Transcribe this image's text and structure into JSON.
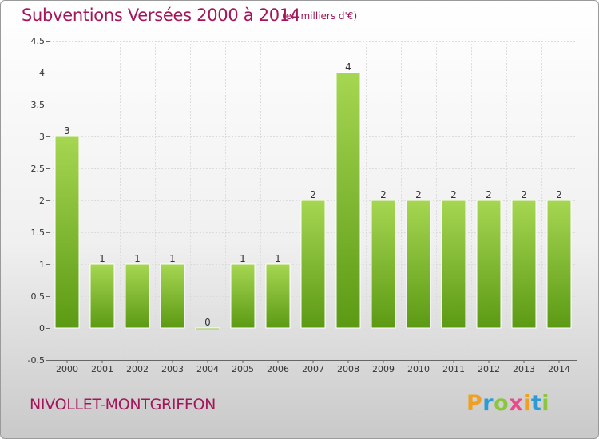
{
  "header": {
    "title": "Subventions Versées 2000 à 2014",
    "subtitle": "(en milliers d'€)"
  },
  "footer": {
    "commune": "NIVOLLET-MONTGRIFFON",
    "logo_letters": [
      "P",
      "r",
      "o",
      "x",
      "i",
      "t",
      "i"
    ],
    "logo_colors": [
      "#f0a020",
      "#2a9bd6",
      "#8cc63f",
      "#e84a8c",
      "#f0a020",
      "#2a9bd6",
      "#8cc63f"
    ]
  },
  "chart_data": {
    "type": "bar",
    "title": "Subventions Versées 2000 à 2014",
    "subtitle": "(en milliers d'€)",
    "categories": [
      "2000",
      "2001",
      "2002",
      "2003",
      "2004",
      "2005",
      "2006",
      "2007",
      "2008",
      "2009",
      "2010",
      "2011",
      "2012",
      "2013",
      "2014"
    ],
    "values": [
      3,
      1,
      1,
      1,
      0,
      1,
      1,
      2,
      4,
      2,
      2,
      2,
      2,
      2,
      2
    ],
    "value_labels": [
      "3",
      "1",
      "1",
      "1",
      "0",
      "1",
      "1",
      "2",
      "4",
      "2",
      "2",
      "2",
      "2",
      "2",
      "2"
    ],
    "ylim": [
      -0.5,
      4.5
    ],
    "yticks": [
      "-0.5",
      "0",
      "0.5",
      "1",
      "1.5",
      "2",
      "2.5",
      "3",
      "3.5",
      "4",
      "4.5"
    ],
    "ytick_values": [
      -0.5,
      0,
      0.5,
      1,
      1.5,
      2,
      2.5,
      3,
      3.5,
      4,
      4.5
    ],
    "grid": true,
    "bar_color_top": "#a6d652",
    "bar_color_bottom": "#5c9a14"
  }
}
